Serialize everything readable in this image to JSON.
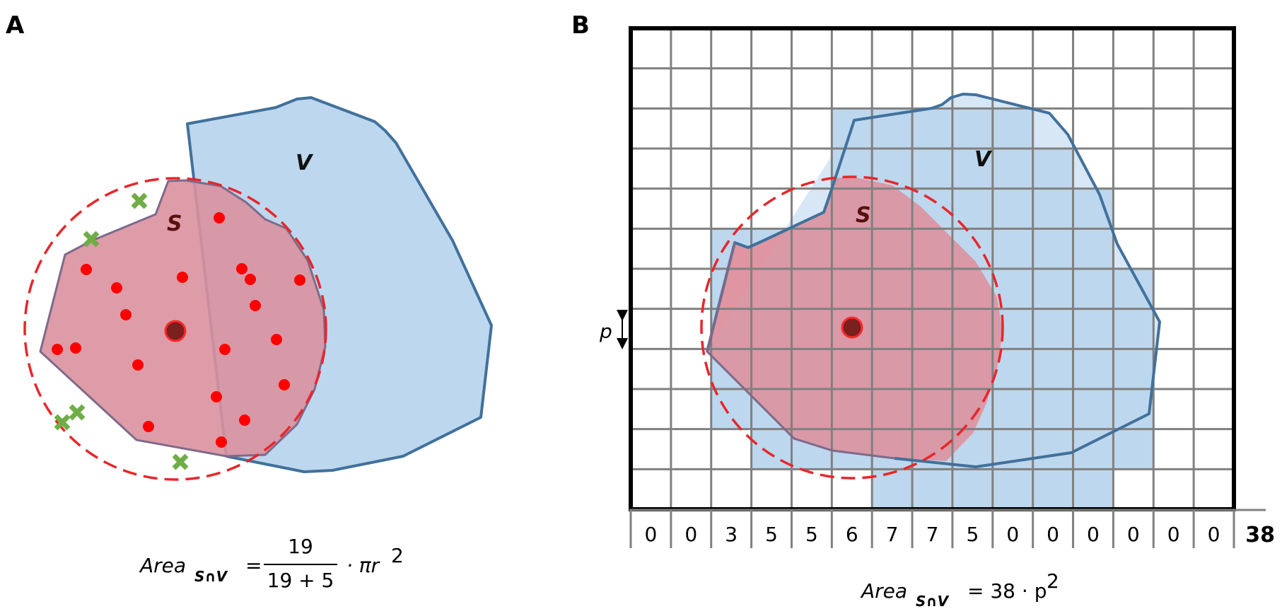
{
  "panel_a": {
    "letter": "A",
    "label_v": "V",
    "label_s": "S",
    "formula": {
      "lhs": "Area",
      "subscript": "S∩V",
      "equals": "=",
      "numerator": "19",
      "denominator": "19 + 5",
      "rhs": "· πr",
      "exponent": "2"
    }
  },
  "panel_b": {
    "letter": "B",
    "label_v": "V",
    "label_s": "S",
    "pixel_label": "p",
    "column_counts": [
      "0",
      "0",
      "3",
      "5",
      "5",
      "6",
      "7",
      "7",
      "5",
      "0",
      "0",
      "0",
      "0",
      "0",
      "0"
    ],
    "total": "38",
    "formula": {
      "lhs": "Area",
      "subscript": "S∩V",
      "rhs": "= 38 · p",
      "exponent": "2"
    }
  },
  "colors": {
    "v_fill": "#bdd7ee",
    "v_stroke": "#41719c",
    "s_fill": "#e8a0aa",
    "circle_stroke": "#e8262a",
    "point_inside": "#ff0000",
    "point_outside": "#70ad47",
    "center": "#7b1f1f",
    "grid": "#808080"
  }
}
